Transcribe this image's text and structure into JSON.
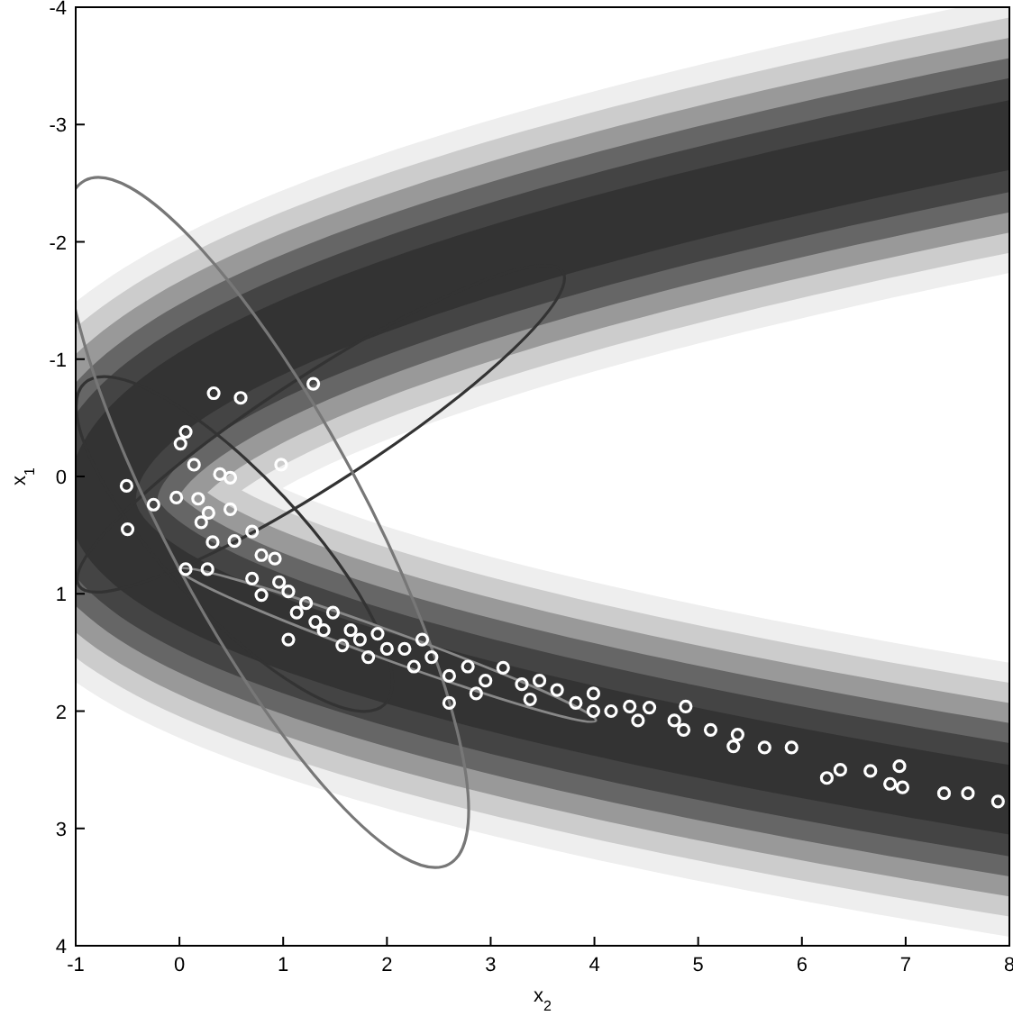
{
  "chart_data": {
    "type": "scatter",
    "xlabel": "x$_{2}$",
    "ylabel": "x$_{1}$",
    "xlim": [
      -1,
      8
    ],
    "ylim": [
      4,
      -4
    ],
    "xticks": [
      -1,
      0,
      1,
      2,
      3,
      4,
      5,
      6,
      7,
      8
    ],
    "yticks": [
      4,
      3,
      2,
      1,
      0,
      -1,
      -2,
      -3,
      -4
    ],
    "grid": false,
    "legend": false,
    "marker": "circle",
    "series": [
      {
        "color": "#ffffff",
        "x": [
          1.29,
          0.33,
          0.59,
          0.06,
          0.01,
          0.14,
          0.98,
          0.49,
          -0.51,
          -0.5,
          -0.25,
          -0.03,
          0.18,
          0.28,
          0.49,
          0.32,
          0.53,
          0.21,
          0.7,
          0.79,
          0.92,
          0.06,
          0.27,
          1.05,
          0.79,
          1.05,
          1.22,
          1.31,
          1.48,
          1.39,
          1.65,
          1.74,
          1.91,
          2.0,
          1.82,
          2.17,
          2.34,
          2.26,
          2.43,
          2.6,
          2.78,
          2.95,
          3.12,
          3.3,
          3.47,
          3.38,
          3.64,
          3.82,
          3.99,
          4.16,
          4.34,
          4.42,
          4.53,
          4.77,
          4.86,
          4.88,
          5.12,
          5.38,
          5.34,
          5.64,
          5.9,
          6.24,
          6.37,
          6.66,
          6.85,
          6.94,
          6.97,
          7.37,
          7.6,
          7.89,
          0.39,
          0.7,
          0.96,
          1.13,
          1.57,
          2.6,
          2.86,
          3.99
        ],
        "values": [
          -0.79,
          -0.71,
          -0.67,
          -0.38,
          -0.28,
          -0.1,
          -0.1,
          0.01,
          0.08,
          0.45,
          0.24,
          0.18,
          0.19,
          0.31,
          0.28,
          0.56,
          0.55,
          0.39,
          0.47,
          0.67,
          0.7,
          0.79,
          0.79,
          1.39,
          1.01,
          0.98,
          1.08,
          1.24,
          1.16,
          1.31,
          1.31,
          1.39,
          1.34,
          1.47,
          1.54,
          1.47,
          1.39,
          1.62,
          1.54,
          1.7,
          1.62,
          1.74,
          1.63,
          1.77,
          1.74,
          1.9,
          1.82,
          1.93,
          1.85,
          2.0,
          1.96,
          2.08,
          1.97,
          2.08,
          2.16,
          1.96,
          2.16,
          2.2,
          2.3,
          2.31,
          2.31,
          2.57,
          2.5,
          2.51,
          2.62,
          2.47,
          2.65,
          2.7,
          2.7,
          2.77,
          -0.02,
          0.87,
          0.9,
          1.16,
          1.44,
          1.93,
          1.85,
          2.0
        ]
      }
    ]
  }
}
